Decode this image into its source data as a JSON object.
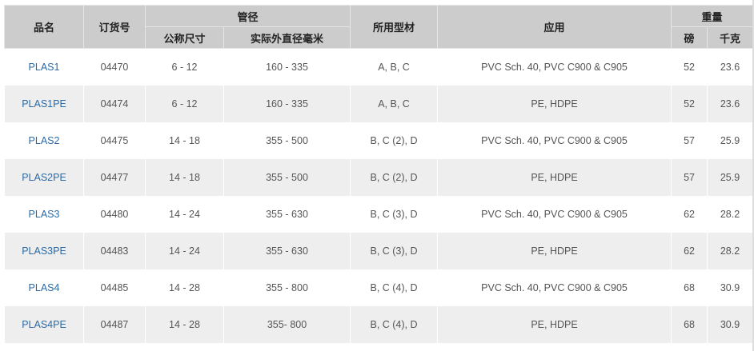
{
  "headers": {
    "name": "品名",
    "order": "订货号",
    "pipe": "管径",
    "nominal": "公称尺寸",
    "od": "实际外直径毫米",
    "profile": "所用型材",
    "application": "应用",
    "weight": "重量",
    "lb": "磅",
    "kg": "千克"
  },
  "link_color": "#2a6aa6",
  "rows": [
    {
      "name": "PLAS1",
      "order": "04470",
      "nominal": "6 - 12",
      "od": "160 - 335",
      "profile": "A, B, C",
      "application": "PVC Sch. 40, PVC C900 & C905",
      "lb": "52",
      "kg": "23.6"
    },
    {
      "name": "PLAS1PE",
      "order": "04474",
      "nominal": "6 - 12",
      "od": "160 - 335",
      "profile": "A, B, C",
      "application": "PE, HDPE",
      "lb": "52",
      "kg": "23.6"
    },
    {
      "name": "PLAS2",
      "order": "04475",
      "nominal": "14 - 18",
      "od": "355 - 500",
      "profile": "B, C (2), D",
      "application": "PVC Sch. 40, PVC C900 & C905",
      "lb": "57",
      "kg": "25.9"
    },
    {
      "name": "PLAS2PE",
      "order": "04477",
      "nominal": "14 - 18",
      "od": "355 - 500",
      "profile": "B, C (2), D",
      "application": "PE, HDPE",
      "lb": "57",
      "kg": "25.9"
    },
    {
      "name": "PLAS3",
      "order": "04480",
      "nominal": "14 - 24",
      "od": "355 - 630",
      "profile": "B, C (3), D",
      "application": "PVC Sch. 40, PVC C900 & C905",
      "lb": "62",
      "kg": "28.2"
    },
    {
      "name": "PLAS3PE",
      "order": "04483",
      "nominal": "14 - 24",
      "od": "355 - 630",
      "profile": "B, C (3), D",
      "application": "PE, HDPE",
      "lb": "62",
      "kg": "28.2"
    },
    {
      "name": "PLAS4",
      "order": "04485",
      "nominal": "14 - 28",
      "od": "355 - 800",
      "profile": "B, C (4), D",
      "application": "PVC Sch. 40, PVC C900 & C905",
      "lb": "68",
      "kg": "30.9"
    },
    {
      "name": "PLAS4PE",
      "order": "04487",
      "nominal": "14 - 28",
      "od": "355- 800",
      "profile": "B, C (4), D",
      "application": "PE, HDPE",
      "lb": "68",
      "kg": "30.9"
    }
  ]
}
